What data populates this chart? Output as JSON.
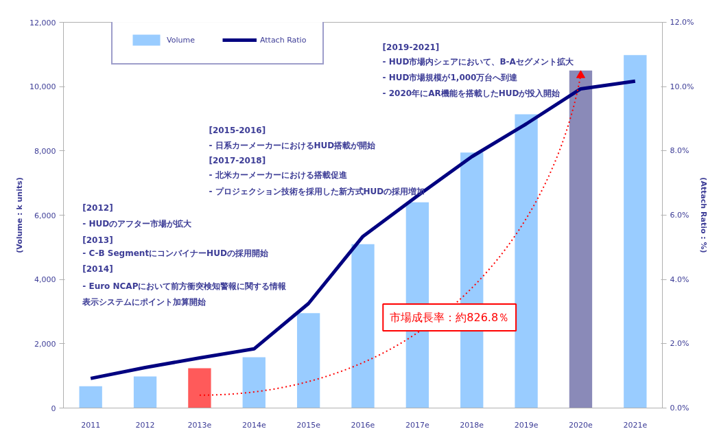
{
  "chart_data": {
    "type": "bar",
    "categories": [
      "2011",
      "2012",
      "2013e",
      "2014e",
      "2015e",
      "2016e",
      "2017e",
      "2018e",
      "2019e",
      "2020e",
      "2021e"
    ],
    "series": [
      {
        "name": "Volume",
        "colors": [
          "#99ccff",
          "#99ccff",
          "#ff5a5a",
          "#99ccff",
          "#99ccff",
          "#99ccff",
          "#99ccff",
          "#99ccff",
          "#99ccff",
          "#8a8ab8",
          "#99ccff"
        ],
        "values": [
          680,
          980,
          1240,
          1580,
          2950,
          5100,
          6400,
          7950,
          9140,
          10500,
          10980
        ]
      },
      {
        "name": "Attach Ratio",
        "type": "line",
        "axis": "y2",
        "color": "#000080",
        "values": [
          0.92,
          1.26,
          1.56,
          1.84,
          3.25,
          5.34,
          6.6,
          7.82,
          8.84,
          9.93,
          10.17
        ]
      }
    ],
    "ylabel": "(Volume : k units)",
    "y2label": "(Attach Ratio : %)",
    "ylim": [
      0,
      12000
    ],
    "yticks": [
      {
        "value": 0,
        "label": "0"
      },
      {
        "value": 2000,
        "label": "2,000"
      },
      {
        "value": 4000,
        "label": "4,000"
      },
      {
        "value": 6000,
        "label": "6,000"
      },
      {
        "value": 8000,
        "label": "8,000"
      },
      {
        "value": 10000,
        "label": "10,000"
      },
      {
        "value": 12000,
        "label": "12,000"
      }
    ],
    "y2lim": [
      0,
      12
    ],
    "y2ticks": [
      {
        "value": 0,
        "label": "0.0%"
      },
      {
        "value": 2,
        "label": "2.0%"
      },
      {
        "value": 4,
        "label": "4.0%"
      },
      {
        "value": 6,
        "label": "6.0%"
      },
      {
        "value": 8,
        "label": "8.0%"
      },
      {
        "value": 10,
        "label": "10.0%"
      },
      {
        "value": 12,
        "label": "12.0%"
      }
    ],
    "grid": false,
    "legend": "top left",
    "marker": "none",
    "line_style": "solid",
    "annotations": [
      "[2012]",
      "- HUDのアフター市場が拡大",
      "[2013]",
      "- C-B SegmentにコンバイナーHUDの採用開始",
      "[2014]",
      "- Euro NCAPにおいて前方衝突検知警報に関する情報",
      "表示システムにポイント加算開始",
      "[2015-2016]",
      "- 日系カーメーカーにおけるHUD搭載が開始",
      "[2017-2018]",
      "- 北米カーメーカーにおける搭載促進",
      "- プロジェクション技術を採用した新方式HUDの採用増加",
      "[2019-2021]",
      "- HUD市場内シェアにおいて、B-Aセグメント拡大",
      "- HUD市場規模が1,000万台へ到達",
      "- 2020年にAR機能を搭載したHUDが投入開始",
      "市場成長率：約826.8％"
    ]
  }
}
